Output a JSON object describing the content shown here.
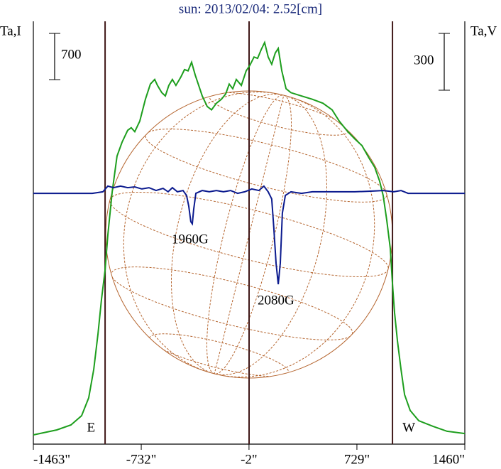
{
  "chart_data": {
    "type": "line",
    "title": "sun: 2013/02/04: 2.52[cm]",
    "y_label": "Ta,I",
    "y2_label": "Ta,V",
    "scale_bar_y": 700,
    "scale_bar_y2": 300,
    "xlim": [
      -1463,
      1460
    ],
    "xticks": [
      {
        "value": -1463,
        "label": "-1463\""
      },
      {
        "value": -732,
        "label": "-732\""
      },
      {
        "value": -2,
        "label": "-2\""
      },
      {
        "value": 729,
        "label": "729\""
      },
      {
        "value": 1460,
        "label": "1460\""
      }
    ],
    "ylim": [
      0,
      6400
    ],
    "y2lim": [
      -1324,
      908
    ],
    "limbs": [
      {
        "label": "E",
        "x": -977
      },
      {
        "label": "W",
        "x": 970
      }
    ],
    "annotations": [
      "1960G",
      "2080G"
    ],
    "series": [
      {
        "name": "Ta,I",
        "color": "#1d9e1d",
        "x": [
          -1463,
          -1304,
          -1208,
          -1136,
          -1088,
          -1054,
          -1025,
          -1001,
          -977,
          -958,
          -929,
          -896,
          -862,
          -824,
          -800,
          -776,
          -742,
          -704,
          -670,
          -641,
          -622,
          -593,
          -569,
          -545,
          -521,
          -497,
          -463,
          -439,
          -415,
          -391,
          -367,
          -343,
          -319,
          -285,
          -256,
          -223,
          -189,
          -160,
          -136,
          -112,
          -88,
          -54,
          -21,
          3,
          32,
          56,
          80,
          104,
          128,
          152,
          176,
          196,
          220,
          249,
          282,
          354,
          427,
          499,
          561,
          609,
          667,
          715,
          763,
          811,
          850,
          883,
          907,
          931,
          955,
          970,
          984,
          1004,
          1028,
          1052,
          1090,
          1148,
          1244,
          1340,
          1460
        ],
        "values": [
          140,
          215,
          290,
          430,
          700,
          1130,
          1670,
          2200,
          2635,
          3170,
          3820,
          4360,
          4570,
          4750,
          4790,
          4730,
          4890,
          5220,
          5450,
          5520,
          5430,
          5320,
          5270,
          5430,
          5520,
          5430,
          5560,
          5670,
          5650,
          5780,
          5590,
          5430,
          5270,
          5110,
          5060,
          5160,
          5220,
          5300,
          5450,
          5380,
          5520,
          5430,
          5650,
          5730,
          5860,
          5840,
          5970,
          6080,
          5860,
          5750,
          5920,
          5990,
          5650,
          5380,
          5320,
          5270,
          5220,
          5160,
          5060,
          4890,
          4730,
          4620,
          4520,
          4330,
          4190,
          3980,
          3760,
          3390,
          2960,
          2420,
          1990,
          1560,
          1130,
          750,
          510,
          355,
          270,
          195,
          160
        ]
      },
      {
        "name": "Ta,V",
        "color": "#0b1a8e",
        "axis": "y2",
        "x": [
          -1463,
          -1064,
          -992,
          -958,
          -920,
          -872,
          -824,
          -776,
          -728,
          -680,
          -632,
          -584,
          -550,
          -521,
          -487,
          -449,
          -425,
          -410,
          -396,
          -386,
          -377,
          -362,
          -319,
          -271,
          -223,
          -175,
          -127,
          -79,
          -31,
          17,
          65,
          99,
          128,
          152,
          166,
          181,
          196,
          210,
          224,
          244,
          282,
          354,
          427,
          523,
          619,
          715,
          811,
          907,
          979,
          1028,
          1076,
          1460
        ],
        "values": [
          0,
          0,
          8,
          38,
          30,
          38,
          30,
          34,
          23,
          30,
          15,
          26,
          8,
          30,
          8,
          15,
          -11,
          -68,
          -150,
          -161,
          -86,
          0,
          15,
          8,
          15,
          8,
          15,
          0,
          8,
          23,
          15,
          38,
          8,
          -30,
          -180,
          -368,
          -480,
          -368,
          -105,
          -11,
          8,
          0,
          8,
          8,
          8,
          8,
          11,
          15,
          8,
          15,
          0,
          0
        ]
      }
    ]
  }
}
